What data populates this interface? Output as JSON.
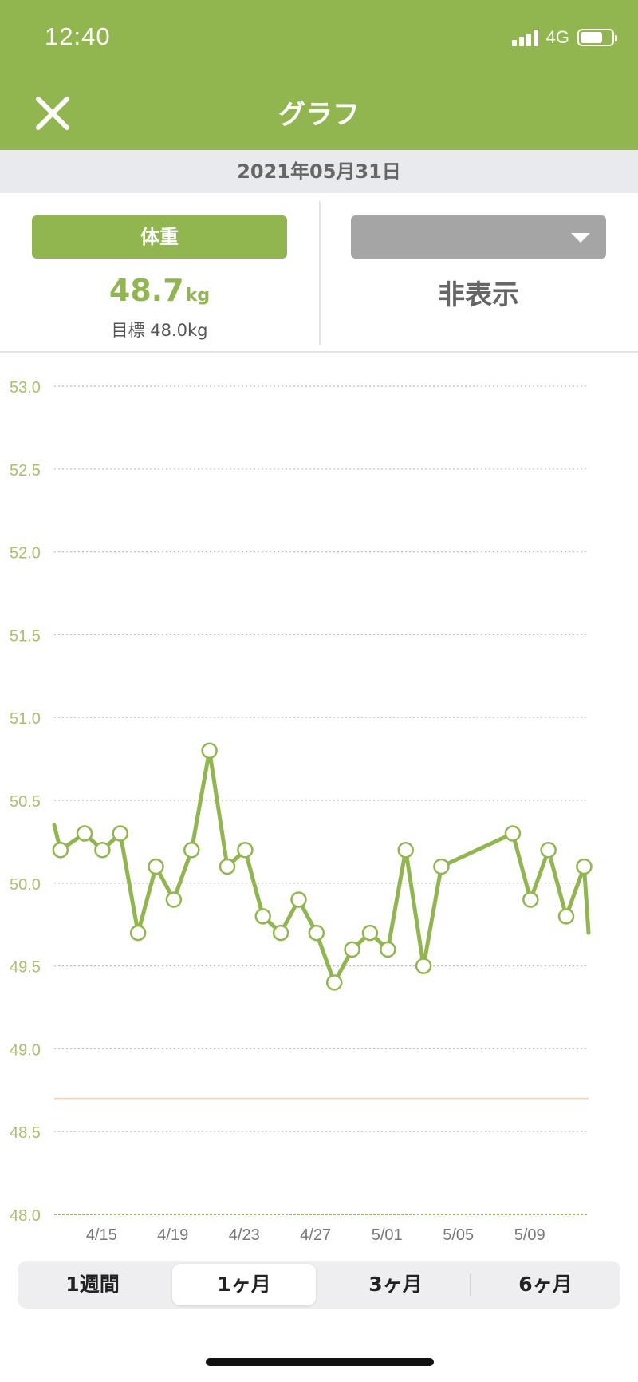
{
  "status_bar": {
    "time": "12:40",
    "network": "4G",
    "battery_level": 0.72
  },
  "header": {
    "title": "グラフ",
    "close_icon": "close-icon"
  },
  "date": "2021年05月31日",
  "primary_metric": {
    "label": "体重",
    "value": "48.7",
    "unit": "kg",
    "goal": "目標 48.0kg"
  },
  "secondary_metric": {
    "dropdown_icon": "chevron-down-icon",
    "value": "非表示"
  },
  "colors": {
    "accent": "#91b650",
    "goal_line": "#f0d9bb",
    "grid": "#bdbdbd"
  },
  "chart_data": {
    "type": "line",
    "y_ticks": [
      "53.0",
      "52.5",
      "52.0",
      "51.5",
      "51.0",
      "50.5",
      "50.0",
      "49.5",
      "49.0",
      "48.5",
      "48.0"
    ],
    "ylim": [
      48.0,
      53.0
    ],
    "x_ticks": [
      "4/15",
      "4/19",
      "4/23",
      "4/27",
      "5/01",
      "5/05",
      "5/09"
    ],
    "x_tick_days": [
      4,
      8,
      12,
      16,
      20,
      24,
      28
    ],
    "xlim": [
      1.35,
      31.3
    ],
    "grid": true,
    "current_value_line": 48.7,
    "series": [
      {
        "x": [
          1.35,
          1.7,
          3.05,
          4.05,
          5.05,
          6.05,
          7.05,
          8.05,
          9.05,
          10.05,
          11.05,
          12.05,
          13.05,
          14.05,
          15.05,
          16.05,
          17.05,
          18.05,
          19.05,
          20.05,
          21.05,
          22.05,
          23.05,
          27.05,
          28.05,
          29.05,
          30.05,
          31.05,
          31.3
        ],
        "y": [
          50.35,
          50.2,
          50.3,
          50.2,
          50.3,
          49.7,
          50.1,
          49.9,
          50.2,
          50.8,
          50.1,
          50.2,
          49.8,
          49.7,
          49.9,
          49.7,
          49.4,
          49.6,
          49.7,
          49.6,
          50.2,
          49.5,
          50.1,
          50.3,
          49.9,
          50.2,
          49.8,
          50.1,
          49.7
        ],
        "markers": [
          false,
          true,
          true,
          true,
          true,
          true,
          true,
          true,
          true,
          true,
          true,
          true,
          true,
          true,
          true,
          true,
          true,
          true,
          true,
          true,
          true,
          true,
          true,
          true,
          true,
          true,
          true,
          true,
          false
        ]
      }
    ]
  },
  "range_tabs": [
    {
      "label": "1週間",
      "active": false
    },
    {
      "label": "1ヶ月",
      "active": true
    },
    {
      "label": "3ヶ月",
      "active": false
    },
    {
      "label": "6ヶ月",
      "active": false
    }
  ]
}
